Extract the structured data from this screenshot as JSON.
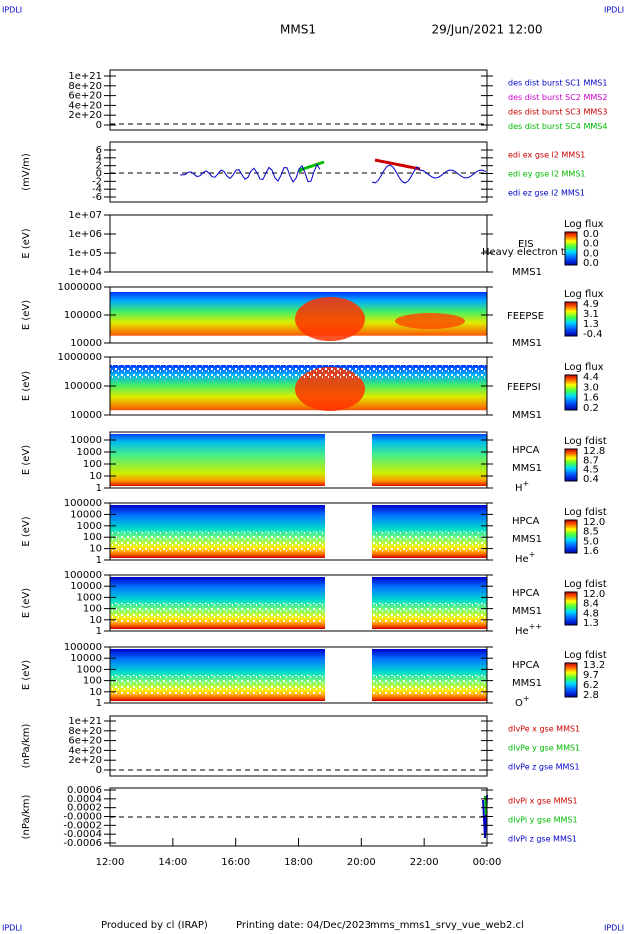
{
  "header": {
    "corner_left": "IPDLI",
    "corner_right": "IPDLI",
    "spacecraft": "MMS1",
    "date": "29/Jun/2021 12:00"
  },
  "footer": {
    "corner_left": "IPDLI",
    "corner_right": "IPDLI",
    "produced": "Produced by cl (IRAP)",
    "printing": "Printing date: 04/Dec/2023",
    "file": "mms_mms1_srvy_vue_web2.cl"
  },
  "xticks": [
    "12:00",
    "14:00",
    "16:00",
    "18:00",
    "20:00",
    "22:00",
    "00:00"
  ],
  "panels": [
    {
      "ylabel": "",
      "yticks": [
        "1e+21",
        "8e+20",
        "6e+20",
        "4e+20",
        "2e+20",
        "0"
      ],
      "legend": [
        {
          "text": "des dist burst SC1 MMS1",
          "color": "#0000cc"
        },
        {
          "text": "des dist burst SC2 MMS2",
          "color": "#cc00cc"
        },
        {
          "text": "des dist burst SC3 MMS3",
          "color": "#cc0000"
        },
        {
          "text": "des dist burst SC4 MMS4",
          "color": "#00bb00"
        }
      ]
    },
    {
      "ylabel": "(mV/m)",
      "yticks": [
        "6",
        "4",
        "2",
        "0",
        "-2",
        "-4",
        "-6"
      ],
      "legend": [
        {
          "text": "edi ex gse l2 MMS1",
          "color": "#cc0000"
        },
        {
          "text": "edi ey gse l2 MMS1",
          "color": "#00bb00"
        },
        {
          "text": "edi ez gse l2 MMS1",
          "color": "#0000cc"
        }
      ]
    },
    {
      "ylabel": "E (eV)",
      "yticks": [
        "1e+07",
        "1e+06",
        "1e+05",
        "1e+04"
      ],
      "labels": [
        "EIS",
        "Heavy electron to",
        "MMS1"
      ],
      "colorbar": {
        "title": "Log flux",
        "labels": [
          "0.0",
          "0.0",
          "0.0",
          "0.0"
        ]
      }
    },
    {
      "ylabel": "E (eV)",
      "yticks": [
        "1000000",
        "100000",
        "10000"
      ],
      "labels": [
        "FEEPSE",
        "MMS1"
      ],
      "colorbar": {
        "title": "Log flux",
        "labels": [
          "4.9",
          "3.1",
          "1.3",
          "-0.4"
        ]
      }
    },
    {
      "ylabel": "E (eV)",
      "yticks": [
        "1000000",
        "100000",
        "10000"
      ],
      "labels": [
        "FEEPSI",
        "MMS1"
      ],
      "colorbar": {
        "title": "Log flux",
        "labels": [
          "4.4",
          "3.0",
          "1.6",
          "0.2"
        ]
      }
    },
    {
      "ylabel": "E (eV)",
      "yticks": [
        "10000",
        "1000",
        "100",
        "10",
        "1"
      ],
      "labels": [
        "HPCA",
        "MMS1"
      ],
      "species": {
        "base": "H",
        "sup": "+"
      },
      "colorbar": {
        "title": "Log fdist",
        "labels": [
          "12.8",
          "8.7",
          "4.5",
          "0.4"
        ]
      }
    },
    {
      "ylabel": "E (eV)",
      "yticks": [
        "100000",
        "10000",
        "1000",
        "100",
        "10",
        "1"
      ],
      "labels": [
        "HPCA",
        "MMS1"
      ],
      "species": {
        "base": "He",
        "sup": "+"
      },
      "colorbar": {
        "title": "Log fdist",
        "labels": [
          "12.0",
          "8.5",
          "5.0",
          "1.6"
        ]
      }
    },
    {
      "ylabel": "E (eV)",
      "yticks": [
        "100000",
        "10000",
        "1000",
        "100",
        "10",
        "1"
      ],
      "labels": [
        "HPCA",
        "MMS1"
      ],
      "species": {
        "base": "He",
        "sup": "++"
      },
      "colorbar": {
        "title": "Log fdist",
        "labels": [
          "12.0",
          "8.4",
          "4.8",
          "1.3"
        ]
      }
    },
    {
      "ylabel": "E (eV)",
      "yticks": [
        "100000",
        "10000",
        "1000",
        "100",
        "10",
        "1"
      ],
      "labels": [
        "HPCA",
        "MMS1"
      ],
      "species": {
        "base": "O",
        "sup": "+"
      },
      "colorbar": {
        "title": "Log fdist",
        "labels": [
          "13.2",
          "9.7",
          "6.2",
          "2.8"
        ]
      }
    },
    {
      "ylabel": "(nPa/km)",
      "yticks": [
        "1e+21",
        "8e+20",
        "6e+20",
        "4e+20",
        "2e+20",
        "0"
      ],
      "legend": [
        {
          "text": "dIvPe x gse MMS1",
          "color": "#cc0000"
        },
        {
          "text": "dIvPe y gse MMS1",
          "color": "#00bb00"
        },
        {
          "text": "dIvPe z gse MMS1",
          "color": "#0000cc"
        }
      ]
    },
    {
      "ylabel": "(nPa/km)",
      "yticks": [
        "0.0006",
        "0.0004",
        "0.0002",
        "-0.0000",
        "-0.0002",
        "-0.0004",
        "-0.0006"
      ],
      "legend": [
        {
          "text": "dIvPi x gse MMS1",
          "color": "#cc0000"
        },
        {
          "text": "dIvPi y gse MMS1",
          "color": "#00bb00"
        },
        {
          "text": "dIvPi z gse MMS1",
          "color": "#0000cc"
        }
      ]
    }
  ]
}
